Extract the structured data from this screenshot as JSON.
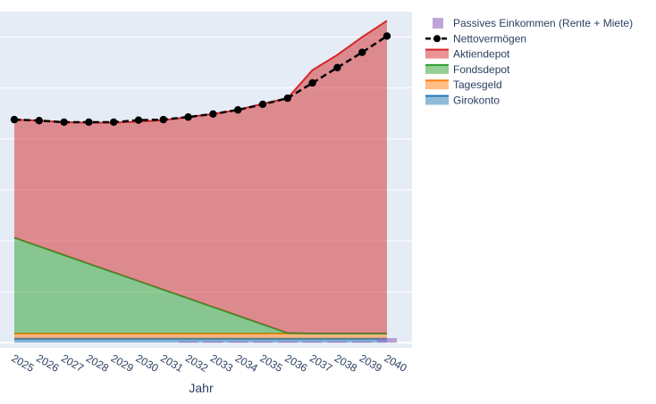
{
  "chart_data": {
    "type": "area",
    "xlabel": "Jahr",
    "ylabel": "",
    "ylim": [
      -0.1,
      6.5
    ],
    "x": [
      2025,
      2026,
      2027,
      2028,
      2029,
      2030,
      2031,
      2032,
      2033,
      2034,
      2035,
      2036,
      2037,
      2038,
      2039,
      2040
    ],
    "x_tick_labels": [
      "2025",
      "2026",
      "2027",
      "2028",
      "2029",
      "2030",
      "2031",
      "2032",
      "2033",
      "2034",
      "2035",
      "2036",
      "2037",
      "2038",
      "2039",
      "2040"
    ],
    "grid": true,
    "legend_position": "top-right",
    "stacked_series": [
      {
        "name": "Girokonto",
        "color": "#1f77b4",
        "values": [
          0.08,
          0.08,
          0.08,
          0.08,
          0.08,
          0.08,
          0.08,
          0.08,
          0.08,
          0.08,
          0.08,
          0.08,
          0.08,
          0.08,
          0.08,
          0.08
        ]
      },
      {
        "name": "Tagesgeld",
        "color": "#ff7f0e",
        "values": [
          0.1,
          0.1,
          0.1,
          0.1,
          0.1,
          0.1,
          0.1,
          0.1,
          0.1,
          0.1,
          0.1,
          0.1,
          0.1,
          0.1,
          0.1,
          0.1
        ]
      },
      {
        "name": "Fondsdepot",
        "color": "#2ca02c",
        "values": [
          1.88,
          1.71,
          1.54,
          1.37,
          1.2,
          1.03,
          0.86,
          0.69,
          0.52,
          0.35,
          0.18,
          0.01,
          0.0,
          0.0,
          0.0,
          0.0
        ]
      },
      {
        "name": "Aktiendepot",
        "color": "#d62728",
        "values": [
          2.32,
          2.47,
          2.61,
          2.77,
          2.94,
          3.13,
          3.33,
          3.56,
          3.79,
          4.04,
          4.33,
          4.61,
          5.17,
          5.47,
          5.82,
          6.14
        ]
      }
    ],
    "line_series": {
      "name": "Nettovermögen",
      "color": "#000000",
      "values": [
        4.38,
        4.36,
        4.33,
        4.33,
        4.33,
        4.37,
        4.38,
        4.43,
        4.49,
        4.57,
        4.68,
        4.8,
        5.1,
        5.4,
        5.7,
        6.02
      ]
    },
    "bar_series": {
      "name": "Passives Einkommen (Rente + Miete)",
      "color": "#9467bd",
      "values": [
        0,
        0,
        0,
        0,
        0,
        0,
        0,
        0.03,
        0.03,
        0.03,
        0.03,
        0.03,
        0.03,
        0.03,
        0.03,
        0.09
      ]
    },
    "legend_order": [
      "Passives Einkommen (Rente + Miete)",
      "Nettovermögen",
      "Aktiendepot",
      "Fondsdepot",
      "Tagesgeld",
      "Girokonto"
    ]
  }
}
